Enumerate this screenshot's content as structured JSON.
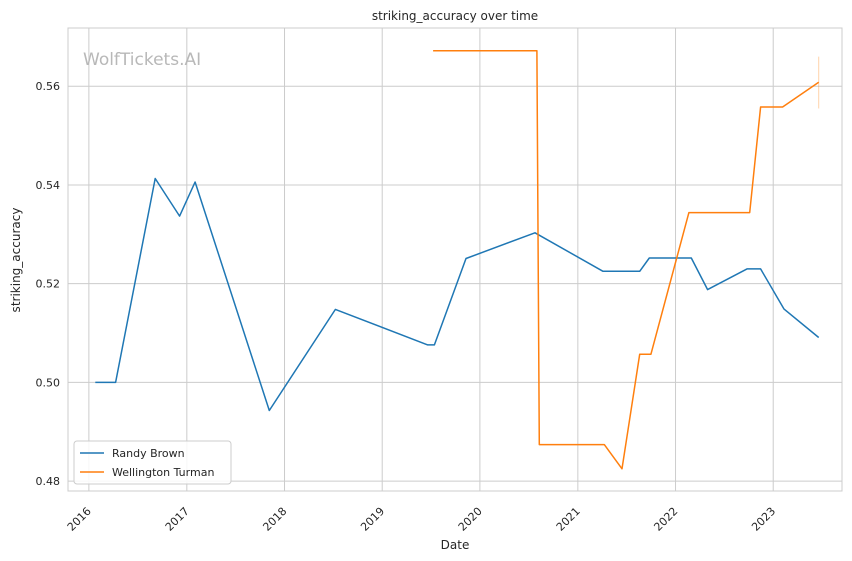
{
  "chart_data": {
    "type": "line",
    "title": "striking_accuracy over time",
    "xlabel": "Date",
    "ylabel": "striking_accuracy",
    "watermark": "WolfTickets.AI",
    "xlim": [
      "2015-10-15",
      "2023-09-15"
    ],
    "ylim": [
      0.478,
      0.5718
    ],
    "x_ticks": [
      {
        "date": "2016-01-01",
        "label": "2016"
      },
      {
        "date": "2017-01-01",
        "label": "2017"
      },
      {
        "date": "2018-01-01",
        "label": "2018"
      },
      {
        "date": "2019-01-01",
        "label": "2019"
      },
      {
        "date": "2020-01-01",
        "label": "2020"
      },
      {
        "date": "2021-01-01",
        "label": "2021"
      },
      {
        "date": "2022-01-01",
        "label": "2022"
      },
      {
        "date": "2023-01-01",
        "label": "2023"
      }
    ],
    "y_ticks": [
      {
        "value": 0.48,
        "label": "0.48"
      },
      {
        "value": 0.5,
        "label": "0.50"
      },
      {
        "value": 0.52,
        "label": "0.52"
      },
      {
        "value": 0.54,
        "label": "0.54"
      },
      {
        "value": 0.56,
        "label": "0.56"
      }
    ],
    "grid": true,
    "legend_position": "bottom-left",
    "series": [
      {
        "name": "Randy Brown",
        "color": "#1f77b4",
        "points": [
          {
            "x": "2016-01-25",
            "y": 0.5
          },
          {
            "x": "2016-04-10",
            "y": 0.5
          },
          {
            "x": "2016-09-05",
            "y": 0.5413
          },
          {
            "x": "2016-12-05",
            "y": 0.5337
          },
          {
            "x": "2017-02-01",
            "y": 0.5406
          },
          {
            "x": "2017-11-05",
            "y": 0.4943
          },
          {
            "x": "2018-07-10",
            "y": 0.5148
          },
          {
            "x": "2019-06-20",
            "y": 0.5076
          },
          {
            "x": "2019-07-15",
            "y": 0.5076
          },
          {
            "x": "2019-11-10",
            "y": 0.5251
          },
          {
            "x": "2020-07-25",
            "y": 0.5303
          },
          {
            "x": "2021-04-05",
            "y": 0.5225
          },
          {
            "x": "2021-08-20",
            "y": 0.5225
          },
          {
            "x": "2021-09-25",
            "y": 0.5252
          },
          {
            "x": "2022-03-01",
            "y": 0.5252
          },
          {
            "x": "2022-05-01",
            "y": 0.5188
          },
          {
            "x": "2022-09-25",
            "y": 0.523
          },
          {
            "x": "2022-11-15",
            "y": 0.523
          },
          {
            "x": "2023-02-10",
            "y": 0.5149
          },
          {
            "x": "2023-06-20",
            "y": 0.5091
          }
        ]
      },
      {
        "name": "Wellington Turman",
        "color": "#ff7f0e",
        "points": [
          {
            "x": "2019-07-10",
            "y": 0.5672
          },
          {
            "x": "2020-08-01",
            "y": 0.5672
          },
          {
            "x": "2020-08-10",
            "y": 0.4874
          },
          {
            "x": "2021-04-10",
            "y": 0.4874
          },
          {
            "x": "2021-06-15",
            "y": 0.4825
          },
          {
            "x": "2021-08-20",
            "y": 0.5057
          },
          {
            "x": "2021-10-01",
            "y": 0.5057
          },
          {
            "x": "2022-02-20",
            "y": 0.5344
          },
          {
            "x": "2022-10-05",
            "y": 0.5344
          },
          {
            "x": "2022-11-15",
            "y": 0.5558
          },
          {
            "x": "2023-02-05",
            "y": 0.5558
          },
          {
            "x": "2023-06-20",
            "y": 0.5608
          }
        ],
        "error_bar": {
          "x": "2023-06-20",
          "low": 0.5555,
          "high": 0.566
        }
      }
    ]
  }
}
